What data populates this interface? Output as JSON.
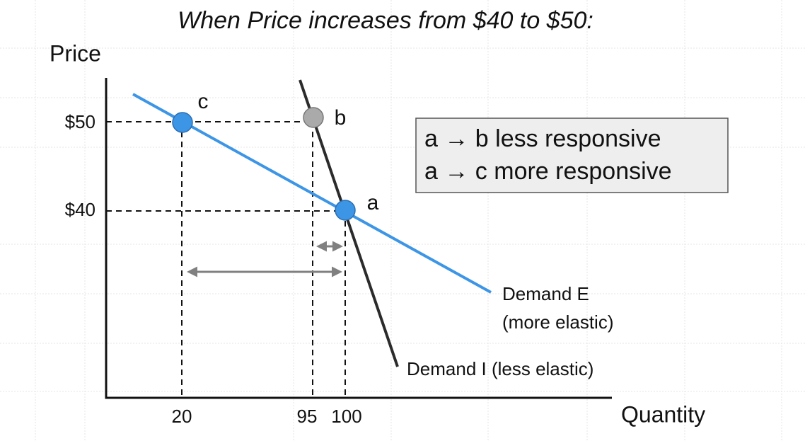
{
  "title": "When Price increases from $40 to $50:",
  "axes": {
    "y_label": "Price",
    "x_label": "Quantity",
    "y_ticks": [
      "$50",
      "$40"
    ],
    "x_ticks": [
      "20",
      "95",
      "100"
    ]
  },
  "points": {
    "a": "a",
    "b": "b",
    "c": "c"
  },
  "curves": {
    "elastic": [
      "Demand E",
      "(more elastic)"
    ],
    "inelastic": "Demand I (less elastic)"
  },
  "note": [
    "a → b less responsive",
    "a → c more responsive"
  ]
}
